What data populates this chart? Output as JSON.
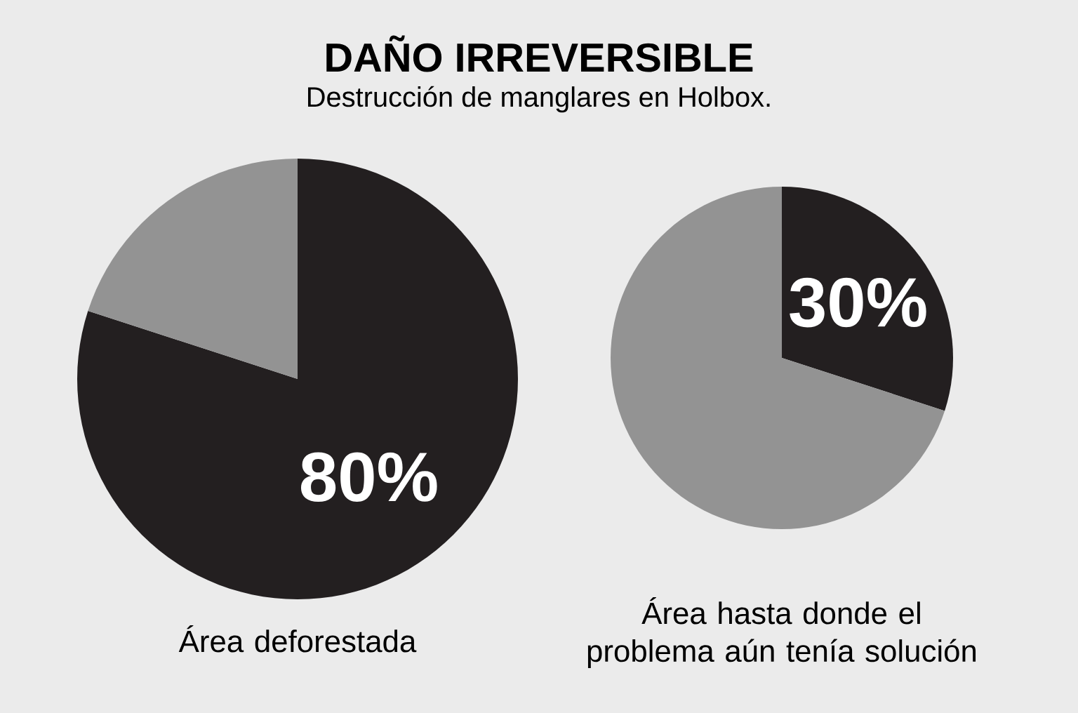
{
  "chart_data": [
    {
      "type": "pie",
      "title": "DAÑO IRREVERSIBLE",
      "subtitle": "Destrucción de manglares en Holbox.",
      "categories": [
        null,
        null
      ],
      "values": [
        80,
        20
      ],
      "colors": [
        "#231f20",
        "#939393"
      ],
      "value_labels": [
        "80%",
        null
      ],
      "annotations": [
        "Área deforestada"
      ]
    },
    {
      "type": "pie",
      "categories": [
        null,
        null
      ],
      "values": [
        30,
        70
      ],
      "colors": [
        "#231f20",
        "#939393"
      ],
      "value_labels": [
        "30%",
        null
      ],
      "annotations": [
        "Área hasta donde el problema aún tenía solución"
      ]
    }
  ]
}
